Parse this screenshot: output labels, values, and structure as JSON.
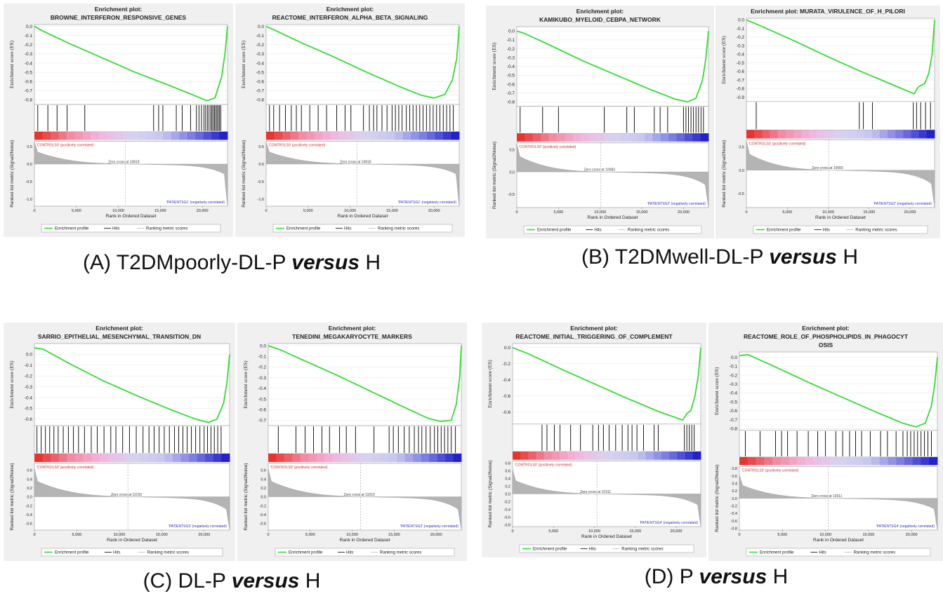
{
  "chart_data": [
    {
      "type": "line",
      "group": "A",
      "title_line1": "Enrichment plot:",
      "title_line2": "BROWNE_INTERFERON_RESPONSIVE_GENES",
      "ylabel": "Enrichment score (ES)",
      "ylabel2": "Ranked list metric (Signal2Noise)",
      "xlabel": "Rank in Ordered Dataset",
      "es_ticks": [
        "0.0",
        "-0.1",
        "-0.2",
        "-0.3",
        "-0.4",
        "-0.5",
        "-0.6",
        "-0.7",
        "-0.8"
      ],
      "es_ylim": [
        -0.85,
        0.02
      ],
      "metric_ticks": [
        "0.5",
        "0.0",
        "-0.5",
        "-1.0"
      ],
      "metric_ylim": [
        -1.2,
        0.65
      ],
      "x_ticks": [
        "0",
        "5,000",
        "10,000",
        "15,000",
        "20,000"
      ],
      "xlim": [
        0,
        23000
      ],
      "es_points": [
        [
          0,
          0
        ],
        [
          1000,
          -0.05
        ],
        [
          4000,
          -0.18
        ],
        [
          8000,
          -0.34
        ],
        [
          12000,
          -0.5
        ],
        [
          16000,
          -0.64
        ],
        [
          19000,
          -0.75
        ],
        [
          20500,
          -0.81
        ],
        [
          21500,
          -0.78
        ],
        [
          22300,
          -0.55
        ],
        [
          22700,
          -0.3
        ],
        [
          23000,
          0
        ]
      ],
      "hits": [
        400,
        1600,
        2700,
        3900,
        6000,
        14200,
        14800,
        15300,
        16900,
        17600,
        18600,
        19300,
        19600,
        19900,
        20200,
        20400,
        20600,
        20800,
        21000,
        21150,
        21300,
        21450,
        21600,
        21750,
        21900,
        22050,
        22200
      ],
      "pos_label": "'CONTROLS0' (positively correlated)",
      "neg_label": "'PATIENTSG1' (negatively correlated)",
      "zero_cross": "Zero cross at 10818",
      "legend": [
        "Enrichment profile",
        "Hits",
        "Ranking metric scores"
      ]
    },
    {
      "type": "line",
      "group": "A",
      "title_line1": "Enrichment plot:",
      "title_line2": "REACTOME_INTERFERON_ALPHA_BETA_SIGNALING",
      "ylabel": "Enrichment score (ES)",
      "ylabel2": "Ranked list metric (Signal2Noise)",
      "xlabel": "Rank in Ordered Dataset",
      "es_ticks": [
        "0.0",
        "-0.1",
        "-0.2",
        "-0.3",
        "-0.4",
        "-0.5",
        "-0.6",
        "-0.7",
        "-0.8"
      ],
      "es_ylim": [
        -0.85,
        0.02
      ],
      "metric_ticks": [
        "0.5",
        "0.0",
        "-0.5",
        "-1.0"
      ],
      "metric_ylim": [
        -1.2,
        0.65
      ],
      "x_ticks": [
        "0",
        "5,000",
        "10,000",
        "15,000",
        "20,000"
      ],
      "xlim": [
        0,
        23000
      ],
      "es_points": [
        [
          0,
          0
        ],
        [
          1000,
          -0.04
        ],
        [
          4000,
          -0.17
        ],
        [
          8000,
          -0.33
        ],
        [
          12000,
          -0.5
        ],
        [
          16000,
          -0.66
        ],
        [
          18500,
          -0.75
        ],
        [
          20000,
          -0.78
        ],
        [
          21300,
          -0.74
        ],
        [
          22200,
          -0.58
        ],
        [
          22700,
          -0.35
        ],
        [
          23000,
          0
        ]
      ],
      "hits": [
        400,
        900,
        1600,
        2300,
        3000,
        3600,
        4200,
        5200,
        6200,
        7200,
        8400,
        9400,
        10100,
        11600,
        12300,
        12800,
        13200,
        13800,
        14400,
        15000,
        15400,
        15800,
        16200,
        16700,
        17100,
        17500,
        17900,
        18300,
        18700,
        19100,
        19500,
        19900,
        20300,
        20700,
        21100,
        21500,
        21900,
        22300
      ],
      "pos_label": "'CONTROLS0' (positively correlated)",
      "neg_label": "'PATIENTSG1' (negatively correlated)",
      "zero_cross": "Zero cross at 10818",
      "legend": [
        "Enrichment profile",
        "Hits",
        "Ranking metric scores"
      ]
    },
    {
      "type": "line",
      "group": "B",
      "title_line1": "Enrichment plot:",
      "title_line2": "KAMIKUBO_MYELOID_CEBPA_NETWORK",
      "ylabel": "Enrichment score (ES)",
      "ylabel2": "Ranked list metric (Signal2Noise)",
      "xlabel": "Rank in Ordered Dataset",
      "es_ticks": [
        "0.0",
        "-0.1",
        "-0.2",
        "-0.3",
        "-0.4",
        "-0.5",
        "-0.6",
        "-0.7",
        "-0.8"
      ],
      "es_ylim": [
        -0.85,
        0.05
      ],
      "metric_ticks": [
        "0.5",
        "0.0",
        "-0.5"
      ],
      "metric_ylim": [
        -0.8,
        0.65
      ],
      "x_ticks": [
        "0",
        "5,000",
        "10,000",
        "15,000",
        "20,000"
      ],
      "xlim": [
        0,
        23000
      ],
      "es_points": [
        [
          0,
          0
        ],
        [
          1000,
          -0.03
        ],
        [
          4000,
          -0.16
        ],
        [
          8000,
          -0.34
        ],
        [
          12000,
          -0.5
        ],
        [
          16000,
          -0.66
        ],
        [
          19000,
          -0.77
        ],
        [
          20500,
          -0.8
        ],
        [
          21500,
          -0.76
        ],
        [
          22300,
          -0.55
        ],
        [
          22700,
          -0.3
        ],
        [
          23000,
          0
        ]
      ],
      "hits": [
        400,
        3100,
        5000,
        10500,
        13200,
        14100,
        16500,
        17200,
        18100,
        20000,
        20300,
        20600,
        20900,
        21200,
        21500,
        21800,
        22100,
        22400
      ],
      "pos_label": "'CONTROLS0' (positively correlated)",
      "neg_label": "'PATIENTSG2' (negatively correlated)",
      "zero_cross": "Zero cross at 10083",
      "legend": [
        "Enrichment profile",
        "Hits",
        "Ranking metric scores"
      ]
    },
    {
      "type": "line",
      "group": "B",
      "title_line1": "Enrichment plot: MURATA_VIRULENCE_OF_H_PILORI",
      "title_line2": "",
      "ylabel": "Enrichment score (ES)",
      "ylabel2": "Ranked list metric (Signal2Noise)",
      "xlabel": "Rank in Ordered Dataset",
      "es_ticks": [
        "0.0",
        "-0.1",
        "-0.2",
        "-0.3",
        "-0.4",
        "-0.5",
        "-0.6",
        "-0.7",
        "-0.8",
        "-0.9"
      ],
      "es_ylim": [
        -0.95,
        0.02
      ],
      "metric_ticks": [
        "0.5",
        "0.0",
        "-0.5"
      ],
      "metric_ylim": [
        -0.8,
        0.65
      ],
      "x_ticks": [
        "0",
        "5,000",
        "10,000",
        "15,000",
        "20,000"
      ],
      "xlim": [
        0,
        23000
      ],
      "es_points": [
        [
          0,
          0
        ],
        [
          2000,
          -0.08
        ],
        [
          6000,
          -0.25
        ],
        [
          10000,
          -0.43
        ],
        [
          14000,
          -0.6
        ],
        [
          18000,
          -0.76
        ],
        [
          20500,
          -0.86
        ],
        [
          21000,
          -0.78
        ],
        [
          21800,
          -0.74
        ],
        [
          22300,
          -0.62
        ],
        [
          22700,
          -0.4
        ],
        [
          23000,
          0
        ]
      ],
      "hits": [
        1200,
        13800,
        14300,
        15400,
        20400,
        20800,
        21300,
        21900,
        22500
      ],
      "pos_label": "'CONTROLS0' (positively correlated)",
      "neg_label": "'PATIENTSG2' (negatively correlated)",
      "zero_cross": "Zero cross at 10083",
      "legend": [
        "Enrichment profile",
        "Hits",
        "Ranking metric scores"
      ]
    },
    {
      "type": "line",
      "group": "C",
      "title_line1": "Enrichment plot:",
      "title_line2": "SARRIO_EPITHELIAL_MESENCHYMAL_TRANSITION_DN",
      "ylabel": "Enrichment score (ES)",
      "ylabel2": "Ranked list metric (Signal2Noise)",
      "xlabel": "Rank in Ordered Dataset",
      "es_ticks": [
        "0.0",
        "-0.1",
        "-0.2",
        "-0.3",
        "-0.4",
        "-0.5",
        "-0.6"
      ],
      "es_ylim": [
        -0.66,
        0.1
      ],
      "metric_ticks": [
        "0.6",
        "0.4",
        "0.2",
        "0.0",
        "-0.2",
        "-0.4",
        "-0.6"
      ],
      "metric_ylim": [
        -0.75,
        0.75
      ],
      "x_ticks": [
        "0",
        "5,000",
        "10,000",
        "15,000",
        "20,000"
      ],
      "xlim": [
        0,
        23000
      ],
      "es_points": [
        [
          0,
          0.06
        ],
        [
          1000,
          0.05
        ],
        [
          4000,
          -0.08
        ],
        [
          8000,
          -0.24
        ],
        [
          12000,
          -0.38
        ],
        [
          16000,
          -0.51
        ],
        [
          19000,
          -0.6
        ],
        [
          20500,
          -0.63
        ],
        [
          21500,
          -0.6
        ],
        [
          22300,
          -0.45
        ],
        [
          22700,
          -0.25
        ],
        [
          23000,
          0
        ]
      ],
      "hits": [
        300,
        800,
        1300,
        1800,
        2300,
        2800,
        3400,
        4000,
        4600,
        5200,
        5900,
        6700,
        7400,
        8200,
        9000,
        9600,
        10400,
        11200,
        12000,
        12800,
        13500,
        14100,
        14700,
        15300,
        15900,
        16500,
        17000,
        17500,
        18000,
        18500,
        19000,
        19500,
        20000,
        20400,
        20800,
        21200,
        21600,
        22000
      ],
      "pos_label": "'CONTROLS0' (positively correlated)",
      "neg_label": "'PATIENTSG3' (negatively correlated)",
      "zero_cross": "Zero cross at 11015",
      "legend": [
        "Enrichment profile",
        "Hits",
        "Ranking metric scores"
      ]
    },
    {
      "type": "line",
      "group": "C",
      "title_line1": "Enrichment plot:",
      "title_line2": "TENEDINI_MEGAKARYOCYTE_MARKERS",
      "ylabel": "Enrichment score (ES)",
      "ylabel2": "Ranked list metric (Signal2Noise)",
      "xlabel": "Rank in Ordered Dataset",
      "es_ticks": [
        "0.0",
        "-0.1",
        "-0.2",
        "-0.3",
        "-0.4",
        "-0.5",
        "-0.6",
        "-0.7"
      ],
      "es_ylim": [
        -0.75,
        0.02
      ],
      "metric_ticks": [
        "0.6",
        "0.4",
        "0.2",
        "0.0",
        "-0.2",
        "-0.4",
        "-0.6"
      ],
      "metric_ylim": [
        -0.75,
        0.75
      ],
      "x_ticks": [
        "0",
        "5,000",
        "10,000",
        "15,000",
        "20,000"
      ],
      "xlim": [
        0,
        23000
      ],
      "es_points": [
        [
          0,
          0
        ],
        [
          1500,
          -0.04
        ],
        [
          4000,
          -0.13
        ],
        [
          8000,
          -0.27
        ],
        [
          12000,
          -0.42
        ],
        [
          16000,
          -0.57
        ],
        [
          19000,
          -0.68
        ],
        [
          20500,
          -0.71
        ],
        [
          21800,
          -0.7
        ],
        [
          22400,
          -0.55
        ],
        [
          22800,
          -0.3
        ],
        [
          23000,
          0
        ]
      ],
      "hits": [
        1200,
        3300,
        4400,
        5400,
        6400,
        7300,
        8500,
        9300,
        10400,
        12600,
        14400,
        14900,
        15500,
        16200,
        16800,
        17400,
        17900,
        18300,
        18800,
        19300,
        19800,
        20200,
        20600,
        21000,
        21400,
        21800,
        22300
      ],
      "pos_label": "'CONTROLS0' (positively correlated)",
      "neg_label": "'PATIENTSG3' (negatively correlated)",
      "zero_cross": "Zero cross at 11015",
      "legend": [
        "Enrichment profile",
        "Hits",
        "Ranking metric scores"
      ]
    },
    {
      "type": "line",
      "group": "D",
      "title_line1": "Enrichment plot:",
      "title_line2": "REACTOME_INITIAL_TRIGGERING_OF_COMPLEMENT",
      "ylabel": "Enrichment score (ES)",
      "ylabel2": "Ranked list metric (Signal2Noise)",
      "xlabel": "Rank in Ordered Dataset",
      "es_ticks": [
        "0.0",
        "-0.2",
        "-0.4",
        "-0.6",
        "-0.8"
      ],
      "es_ylim": [
        -0.95,
        0.05
      ],
      "metric_ticks": [
        "0.8",
        "0.6",
        "0.4",
        "0.2",
        "0.0",
        "-0.2",
        "-0.4",
        "-0.6",
        "-0.8"
      ],
      "metric_ylim": [
        -0.85,
        0.85
      ],
      "x_ticks": [
        "0",
        "5,000",
        "10,000",
        "15,000",
        "20,000"
      ],
      "xlim": [
        0,
        23000
      ],
      "es_points": [
        [
          0,
          0
        ],
        [
          2000,
          -0.08
        ],
        [
          6000,
          -0.27
        ],
        [
          10000,
          -0.45
        ],
        [
          14000,
          -0.63
        ],
        [
          18000,
          -0.8
        ],
        [
          20800,
          -0.9
        ],
        [
          21300,
          -0.82
        ],
        [
          21800,
          -0.78
        ],
        [
          22300,
          -0.6
        ],
        [
          22700,
          -0.35
        ],
        [
          23000,
          0
        ]
      ],
      "hits": [
        3600,
        4200,
        5100,
        5800,
        7100,
        8300,
        9800,
        10500,
        11100,
        11800,
        12600,
        13400,
        14100,
        14600,
        15200,
        16000,
        17300,
        17800,
        21000,
        21300,
        21600,
        21900,
        22200
      ],
      "pos_label": "'CONTROLS0' (positively correlated)",
      "neg_label": "'PATIENTSG4' (negatively correlated)",
      "zero_cross": "Zero cross at 10311",
      "legend": [
        "Enrichment profile",
        "Hits",
        "Ranking metric scores"
      ]
    },
    {
      "type": "line",
      "group": "D",
      "title_line1": "Enrichment plot:",
      "title_line2": "REACTOME_ROLE_OF_PHOSPHOLIPIDS_IN_PHAGOCYT",
      "title_line3": "OSIS",
      "ylabel": "Enrichment score (ES)",
      "ylabel2": "Ranked list metric (Signal2Noise)",
      "xlabel": "Rank in Ordered Dataset",
      "es_ticks": [
        "0.0",
        "-0.1",
        "-0.2",
        "-0.3",
        "-0.4",
        "-0.5",
        "-0.6",
        "-0.7",
        "-0.8"
      ],
      "es_ylim": [
        -0.82,
        0.06
      ],
      "metric_ticks": [
        "0.8",
        "0.6",
        "0.4",
        "0.2",
        "0.0",
        "-0.2",
        "-0.4",
        "-0.6",
        "-0.8"
      ],
      "metric_ylim": [
        -0.85,
        0.85
      ],
      "x_ticks": [
        "0",
        "5,000",
        "10,000",
        "15,000",
        "20,000"
      ],
      "xlim": [
        0,
        23000
      ],
      "es_points": [
        [
          0,
          0.02
        ],
        [
          1000,
          0.03
        ],
        [
          4000,
          -0.1
        ],
        [
          8000,
          -0.28
        ],
        [
          12000,
          -0.45
        ],
        [
          16000,
          -0.62
        ],
        [
          19000,
          -0.74
        ],
        [
          20500,
          -0.78
        ],
        [
          21600,
          -0.74
        ],
        [
          22300,
          -0.55
        ],
        [
          22700,
          -0.3
        ],
        [
          23000,
          0
        ]
      ],
      "hits": [
        700,
        2400,
        4200,
        4900,
        5600,
        6700,
        8000,
        9100,
        10000,
        11200,
        12000,
        12800,
        13500,
        14200,
        15200,
        16400,
        17200,
        18200,
        19000,
        19500,
        19900,
        20300,
        20700,
        21100,
        21500,
        21900,
        22300
      ],
      "pos_label": "'CONTROLS0' (positively correlated)",
      "neg_label": "'PATIENTSG4' (negatively correlated)",
      "zero_cross": "Zero cross at 10311",
      "legend": [
        "Enrichment profile",
        "Hits",
        "Ranking metric scores"
      ]
    }
  ],
  "captions": {
    "a_prefix": "(A) T2DMpoorly-DL-P ",
    "a_italic": "versus",
    "a_suffix": " H",
    "b_prefix": "(B) T2DMwell-DL-P ",
    "b_italic": "versus",
    "b_suffix": " H",
    "c_prefix": "(C) DL-P ",
    "c_italic": "versus",
    "c_suffix": " H",
    "d_prefix": "(D) P ",
    "d_italic": "versus",
    "d_suffix": " H"
  },
  "colors": {
    "profile": "#33dd33",
    "panel_bg": "#f0f0f0",
    "plot_bg": "#ffffff",
    "pos": "#e8332f",
    "neg": "#2222cc",
    "metric_fill": "#b4b4b4"
  }
}
